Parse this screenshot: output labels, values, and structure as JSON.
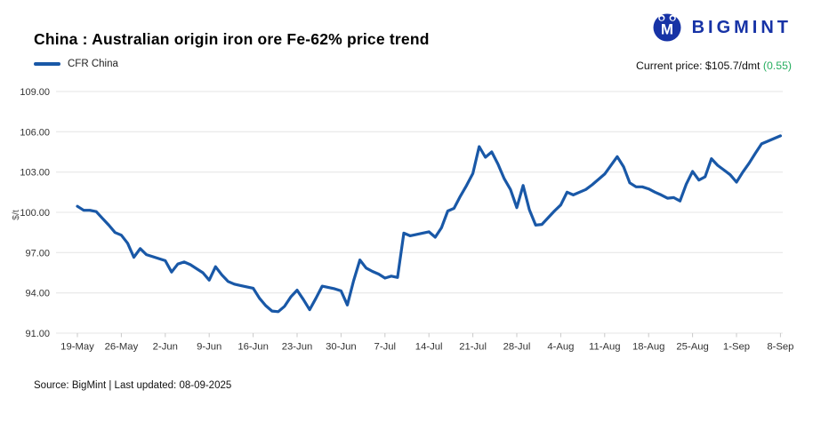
{
  "header": {
    "title": "China : Australian origin iron ore Fe-62% price trend",
    "legend_label": "CFR China",
    "current_price_label": "Current price:",
    "current_price_value": "$105.7/dmt",
    "current_price_change": "(0.55)"
  },
  "logo": {
    "text": "BIGMINT",
    "icon": "bigmint-m-icon"
  },
  "footer": {
    "source": "Source: BigMint | Last updated: 08-09-2025"
  },
  "colors": {
    "line": "#1958a7",
    "grid": "#e4e4e4",
    "tick": "#c9c9c9",
    "tick_text": "#333333",
    "axis_label": "#555555",
    "navy": "#1733a6",
    "green": "#27ae60"
  },
  "chart_data": {
    "type": "line",
    "title": "China : Australian origin iron ore Fe-62% price trend",
    "series_name": "CFR China",
    "ylabel": "$/t",
    "xlabel": "",
    "ylim": [
      91,
      109
    ],
    "yticks": [
      109,
      106,
      103,
      100,
      97,
      94,
      91
    ],
    "ytick_labels": [
      "109.00",
      "106.00",
      "103.00",
      "100.00",
      "97.00",
      "94.00",
      "91.00"
    ],
    "xtick_labels": [
      "19-May",
      "26-May",
      "2-Jun",
      "9-Jun",
      "16-Jun",
      "23-Jun",
      "30-Jun",
      "7-Jul",
      "14-Jul",
      "21-Jul",
      "28-Jul",
      "4-Aug",
      "11-Aug",
      "18-Aug",
      "25-Aug",
      "1-Sep",
      "8-Sep"
    ],
    "grid": true,
    "legend_position": "top-left",
    "x": [
      "19-May",
      "20-May",
      "21-May",
      "22-May",
      "23-May",
      "24-May",
      "25-May",
      "26-May",
      "27-May",
      "28-May",
      "29-May",
      "30-May",
      "31-May",
      "1-Jun",
      "2-Jun",
      "3-Jun",
      "4-Jun",
      "5-Jun",
      "6-Jun",
      "7-Jun",
      "8-Jun",
      "9-Jun",
      "10-Jun",
      "11-Jun",
      "12-Jun",
      "13-Jun",
      "14-Jun",
      "15-Jun",
      "16-Jun",
      "17-Jun",
      "18-Jun",
      "19-Jun",
      "20-Jun",
      "21-Jun",
      "22-Jun",
      "23-Jun",
      "24-Jun",
      "25-Jun",
      "26-Jun",
      "27-Jun",
      "28-Jun",
      "29-Jun",
      "30-Jun",
      "1-Jul",
      "2-Jul",
      "3-Jul",
      "4-Jul",
      "5-Jul",
      "6-Jul",
      "7-Jul",
      "8-Jul",
      "9-Jul",
      "10-Jul",
      "11-Jul",
      "12-Jul",
      "13-Jul",
      "14-Jul",
      "15-Jul",
      "16-Jul",
      "17-Jul",
      "18-Jul",
      "19-Jul",
      "20-Jul",
      "21-Jul",
      "22-Jul",
      "23-Jul",
      "24-Jul",
      "25-Jul",
      "26-Jul",
      "27-Jul",
      "28-Jul",
      "29-Jul",
      "30-Jul",
      "31-Jul",
      "1-Aug",
      "2-Aug",
      "3-Aug",
      "4-Aug",
      "5-Aug",
      "6-Aug",
      "7-Aug",
      "8-Aug",
      "9-Aug",
      "10-Aug",
      "11-Aug",
      "12-Aug",
      "13-Aug",
      "14-Aug",
      "15-Aug",
      "16-Aug",
      "17-Aug",
      "18-Aug",
      "19-Aug",
      "20-Aug",
      "21-Aug",
      "22-Aug",
      "23-Aug",
      "24-Aug",
      "25-Aug",
      "26-Aug",
      "27-Aug",
      "28-Aug",
      "29-Aug",
      "30-Aug",
      "31-Aug",
      "1-Sep",
      "2-Sep",
      "3-Sep",
      "4-Sep",
      "5-Sep",
      "6-Sep",
      "7-Sep",
      "8-Sep"
    ],
    "values": [
      100.45,
      100.15,
      100.15,
      100.05,
      99.55,
      99.05,
      98.5,
      98.3,
      97.7,
      96.65,
      97.3,
      96.85,
      96.7,
      96.55,
      96.4,
      95.55,
      96.15,
      96.3,
      96.1,
      95.8,
      95.5,
      94.95,
      95.95,
      95.35,
      94.85,
      94.65,
      94.55,
      94.45,
      94.35,
      93.6,
      93.05,
      92.65,
      92.6,
      93.0,
      93.7,
      94.2,
      93.5,
      92.75,
      93.6,
      94.5,
      94.4,
      94.3,
      94.15,
      93.1,
      94.9,
      96.45,
      95.85,
      95.6,
      95.4,
      95.1,
      95.25,
      95.15,
      98.45,
      98.25,
      98.35,
      98.45,
      98.55,
      98.15,
      98.85,
      100.1,
      100.3,
      101.2,
      102.0,
      102.9,
      104.9,
      104.1,
      104.5,
      103.6,
      102.5,
      101.7,
      100.35,
      102.0,
      100.2,
      99.05,
      99.1,
      99.6,
      100.1,
      100.55,
      101.5,
      101.3,
      101.5,
      101.7,
      102.05,
      102.45,
      102.85,
      103.5,
      104.15,
      103.4,
      102.2,
      101.9,
      101.9,
      101.75,
      101.5,
      101.3,
      101.05,
      101.1,
      100.85,
      102.1,
      103.05,
      102.4,
      102.65,
      104.0,
      103.5,
      103.15,
      102.8,
      102.25,
      103.0,
      103.65,
      104.4,
      105.1,
      105.3,
      105.5,
      105.7
    ]
  }
}
